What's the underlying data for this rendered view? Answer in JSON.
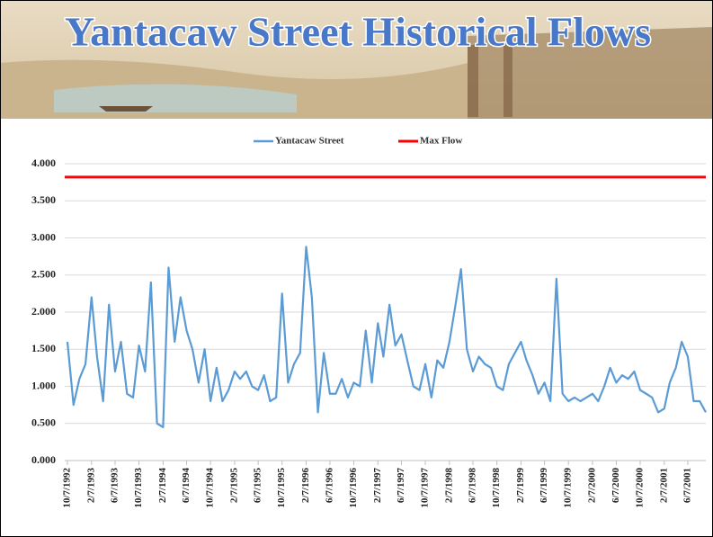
{
  "chart_data": {
    "type": "line",
    "title": "Yantacaw Street Historical Flows",
    "x": [
      "10/7/1992",
      "11/7/1992",
      "12/7/1992",
      "1/7/1993",
      "2/7/1993",
      "3/7/1993",
      "4/7/1993",
      "5/7/1993",
      "6/7/1993",
      "7/7/1993",
      "8/7/1993",
      "9/7/1993",
      "10/7/1993",
      "11/7/1993",
      "12/7/1993",
      "1/7/1994",
      "2/7/1994",
      "3/7/1994",
      "4/7/1994",
      "5/7/1994",
      "6/7/1994",
      "7/7/1994",
      "8/7/1994",
      "9/7/1994",
      "10/7/1994",
      "11/7/1994",
      "12/7/1994",
      "1/7/1995",
      "2/7/1995",
      "3/7/1995",
      "4/7/1995",
      "5/7/1995",
      "6/7/1995",
      "7/7/1995",
      "8/7/1995",
      "9/7/1995",
      "10/7/1995",
      "11/7/1995",
      "12/7/1995",
      "1/7/1996",
      "2/7/1996",
      "3/7/1996",
      "4/7/1996",
      "5/7/1996",
      "6/7/1996",
      "7/7/1996",
      "8/7/1996",
      "9/7/1996",
      "10/7/1996",
      "11/7/1996",
      "12/7/1996",
      "1/7/1997",
      "2/7/1997",
      "3/7/1997",
      "4/7/1997",
      "5/7/1997",
      "6/7/1997",
      "7/7/1997",
      "8/7/1997",
      "9/7/1997",
      "10/7/1997",
      "11/7/1997",
      "12/7/1997",
      "1/7/1998",
      "2/7/1998",
      "3/7/1998",
      "4/7/1998",
      "5/7/1998",
      "6/7/1998",
      "7/7/1998",
      "8/7/1998",
      "9/7/1998",
      "10/7/1998",
      "11/7/1998",
      "12/7/1998",
      "1/7/1999",
      "2/7/1999",
      "3/7/1999",
      "4/7/1999",
      "5/7/1999",
      "6/7/1999",
      "7/7/1999",
      "8/7/1999",
      "9/7/1999",
      "10/7/1999",
      "11/7/1999",
      "12/7/1999",
      "1/7/2000",
      "2/7/2000",
      "3/7/2000",
      "4/7/2000",
      "5/7/2000",
      "6/7/2000",
      "7/7/2000",
      "8/7/2000",
      "9/7/2000",
      "10/7/2000",
      "11/7/2000",
      "12/7/2000",
      "1/7/2001",
      "2/7/2001",
      "3/7/2001",
      "4/7/2001",
      "5/7/2001",
      "6/7/2001",
      "7/7/2001",
      "8/7/2001",
      "9/7/2001"
    ],
    "series": [
      {
        "name": "Yantacaw Street",
        "color": "#5b9bd5",
        "values": [
          1.6,
          0.75,
          1.1,
          1.3,
          2.2,
          1.4,
          0.8,
          2.1,
          1.2,
          1.6,
          0.9,
          0.85,
          1.55,
          1.2,
          2.4,
          0.5,
          0.45,
          2.6,
          1.6,
          2.2,
          1.75,
          1.5,
          1.05,
          1.5,
          0.8,
          1.25,
          0.8,
          0.95,
          1.2,
          1.1,
          1.2,
          1.0,
          0.95,
          1.15,
          0.8,
          0.85,
          2.25,
          1.05,
          1.3,
          1.45,
          2.88,
          2.2,
          0.65,
          1.45,
          0.9,
          0.9,
          1.1,
          0.85,
          1.05,
          1.0,
          1.75,
          1.05,
          1.85,
          1.4,
          2.1,
          1.55,
          1.7,
          1.35,
          1.0,
          0.95,
          1.3,
          0.85,
          1.35,
          1.25,
          1.6,
          2.05,
          2.58,
          1.5,
          1.2,
          1.4,
          1.3,
          1.25,
          1.0,
          0.95,
          1.3,
          1.45,
          1.6,
          1.35,
          1.15,
          0.9,
          1.05,
          0.8,
          2.45,
          0.9,
          0.8,
          0.85,
          0.8,
          0.85,
          0.9,
          0.8,
          1.0,
          1.25,
          1.05,
          1.15,
          1.1,
          1.2,
          0.95,
          0.9,
          0.85,
          0.65,
          0.7,
          1.05,
          1.25,
          1.6,
          1.4,
          0.8,
          0.8,
          0.65
        ]
      }
    ],
    "reference_lines": [
      {
        "name": "Max Flow",
        "color": "#ff0000",
        "value": 3.82
      }
    ],
    "xlim": [
      "10/7/1992",
      "9/7/2001"
    ],
    "xticks": [
      "10/7/1992",
      "2/7/1993",
      "6/7/1993",
      "10/7/1993",
      "2/7/1994",
      "6/7/1994",
      "10/7/1994",
      "2/7/1995",
      "6/7/1995",
      "10/7/1995",
      "2/7/1996",
      "6/7/1996",
      "10/7/1996",
      "2/7/1997",
      "6/7/1997",
      "10/7/1997",
      "2/7/1998",
      "6/7/1998",
      "10/7/1998",
      "2/7/1999",
      "6/7/1999",
      "10/7/1999",
      "2/7/2000",
      "6/7/2000",
      "10/7/2000",
      "2/7/2001",
      "6/7/2001"
    ],
    "ylim": [
      0,
      4
    ],
    "yticks": [
      {
        "value": 0,
        "label": "0.000"
      },
      {
        "value": 0.5,
        "label": "0.500"
      },
      {
        "value": 1,
        "label": "1.000"
      },
      {
        "value": 1.5,
        "label": "1.500"
      },
      {
        "value": 2,
        "label": "2.000"
      },
      {
        "value": 2.5,
        "label": "2.500"
      },
      {
        "value": 3,
        "label": "3.000"
      },
      {
        "value": 3.5,
        "label": "3.500"
      },
      {
        "value": 4,
        "label": "4.000"
      }
    ],
    "grid": true,
    "legend": "top"
  }
}
